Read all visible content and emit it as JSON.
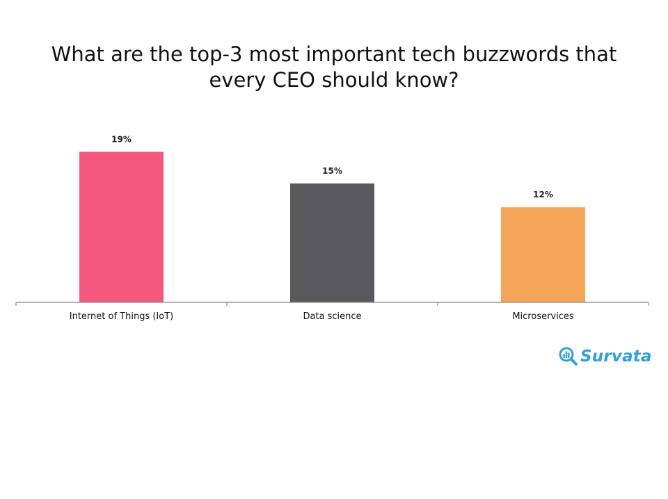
{
  "chart_data": {
    "type": "bar",
    "title": "What are the top-3 most important tech buzzwords that every CEO should know?",
    "categories": [
      "Internet of Things (IoT)",
      "Data science",
      "Microservices"
    ],
    "values": [
      19,
      15,
      12
    ],
    "value_labels": [
      "19%",
      "15%",
      "12%"
    ],
    "colors": [
      "#f4587d",
      "#59585d",
      "#f5a55a"
    ],
    "ylim": [
      0,
      20
    ],
    "grid": false,
    "legend": "none"
  },
  "brand": {
    "name": "Survata",
    "color": "#2f9fd8",
    "icon": "magnifier-bars-icon"
  }
}
